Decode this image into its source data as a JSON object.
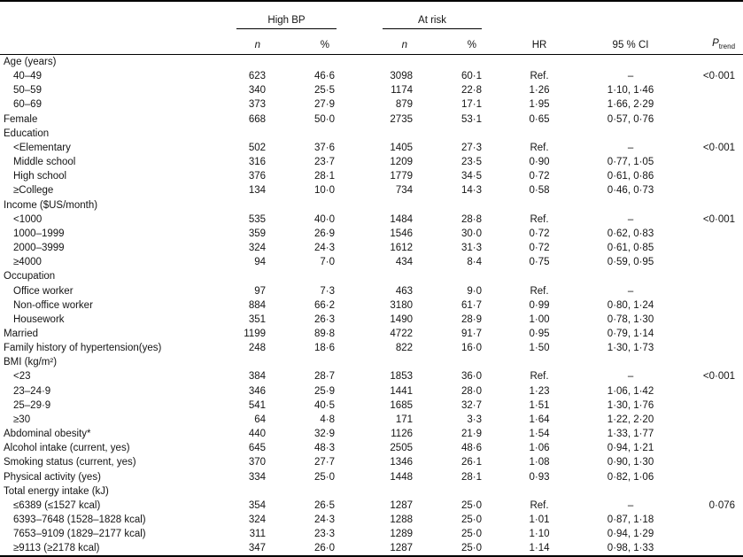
{
  "header": {
    "group_highbp": "High BP",
    "group_atrisk": "At risk",
    "col_n": "n",
    "col_pct": "%",
    "col_hr": "HR",
    "col_ci": "95 % CI",
    "col_p_main": "P",
    "col_p_sub": "trend"
  },
  "table": {
    "rows": [
      {
        "label": "Age (years)",
        "indent": 0,
        "hbp_n": "",
        "hbp_pct": "",
        "risk_n": "",
        "risk_pct": "",
        "hr": "",
        "ci": "",
        "p": ""
      },
      {
        "label": "40–49",
        "indent": 1,
        "hbp_n": "623",
        "hbp_pct": "46·6",
        "risk_n": "3098",
        "risk_pct": "60·1",
        "hr": "Ref.",
        "ci": "–",
        "p": "<0·001"
      },
      {
        "label": "50–59",
        "indent": 1,
        "hbp_n": "340",
        "hbp_pct": "25·5",
        "risk_n": "1174",
        "risk_pct": "22·8",
        "hr": "1·26",
        "ci": "1·10, 1·46",
        "p": ""
      },
      {
        "label": "60–69",
        "indent": 1,
        "hbp_n": "373",
        "hbp_pct": "27·9",
        "risk_n": "879",
        "risk_pct": "17·1",
        "hr": "1·95",
        "ci": "1·66, 2·29",
        "p": ""
      },
      {
        "label": "Female",
        "indent": 0,
        "hbp_n": "668",
        "hbp_pct": "50·0",
        "risk_n": "2735",
        "risk_pct": "53·1",
        "hr": "0·65",
        "ci": "0·57, 0·76",
        "p": ""
      },
      {
        "label": "Education",
        "indent": 0,
        "hbp_n": "",
        "hbp_pct": "",
        "risk_n": "",
        "risk_pct": "",
        "hr": "",
        "ci": "",
        "p": ""
      },
      {
        "label": "<Elementary",
        "indent": 1,
        "hbp_n": "502",
        "hbp_pct": "37·6",
        "risk_n": "1405",
        "risk_pct": "27·3",
        "hr": "Ref.",
        "ci": "–",
        "p": "<0·001"
      },
      {
        "label": "Middle school",
        "indent": 1,
        "hbp_n": "316",
        "hbp_pct": "23·7",
        "risk_n": "1209",
        "risk_pct": "23·5",
        "hr": "0·90",
        "ci": "0·77, 1·05",
        "p": ""
      },
      {
        "label": "High school",
        "indent": 1,
        "hbp_n": "376",
        "hbp_pct": "28·1",
        "risk_n": "1779",
        "risk_pct": "34·5",
        "hr": "0·72",
        "ci": "0·61, 0·86",
        "p": ""
      },
      {
        "label": "≥College",
        "indent": 1,
        "hbp_n": "134",
        "hbp_pct": "10·0",
        "risk_n": "734",
        "risk_pct": "14·3",
        "hr": "0·58",
        "ci": "0·46, 0·73",
        "p": ""
      },
      {
        "label": "Income ($US/month)",
        "indent": 0,
        "hbp_n": "",
        "hbp_pct": "",
        "risk_n": "",
        "risk_pct": "",
        "hr": "",
        "ci": "",
        "p": ""
      },
      {
        "label": "<1000",
        "indent": 1,
        "hbp_n": "535",
        "hbp_pct": "40·0",
        "risk_n": "1484",
        "risk_pct": "28·8",
        "hr": "Ref.",
        "ci": "–",
        "p": "<0·001"
      },
      {
        "label": "1000–1999",
        "indent": 1,
        "hbp_n": "359",
        "hbp_pct": "26·9",
        "risk_n": "1546",
        "risk_pct": "30·0",
        "hr": "0·72",
        "ci": "0·62, 0·83",
        "p": ""
      },
      {
        "label": "2000–3999",
        "indent": 1,
        "hbp_n": "324",
        "hbp_pct": "24·3",
        "risk_n": "1612",
        "risk_pct": "31·3",
        "hr": "0·72",
        "ci": "0·61, 0·85",
        "p": ""
      },
      {
        "label": "≥4000",
        "indent": 1,
        "hbp_n": "94",
        "hbp_pct": "7·0",
        "risk_n": "434",
        "risk_pct": "8·4",
        "hr": "0·75",
        "ci": "0·59, 0·95",
        "p": ""
      },
      {
        "label": "Occupation",
        "indent": 0,
        "hbp_n": "",
        "hbp_pct": "",
        "risk_n": "",
        "risk_pct": "",
        "hr": "",
        "ci": "",
        "p": ""
      },
      {
        "label": "Office worker",
        "indent": 1,
        "hbp_n": "97",
        "hbp_pct": "7·3",
        "risk_n": "463",
        "risk_pct": "9·0",
        "hr": "Ref.",
        "ci": "–",
        "p": ""
      },
      {
        "label": "Non-office worker",
        "indent": 1,
        "hbp_n": "884",
        "hbp_pct": "66·2",
        "risk_n": "3180",
        "risk_pct": "61·7",
        "hr": "0·99",
        "ci": "0·80, 1·24",
        "p": ""
      },
      {
        "label": "Housework",
        "indent": 1,
        "hbp_n": "351",
        "hbp_pct": "26·3",
        "risk_n": "1490",
        "risk_pct": "28·9",
        "hr": "1·00",
        "ci": "0·78, 1·30",
        "p": ""
      },
      {
        "label": "Married",
        "indent": 0,
        "hbp_n": "1199",
        "hbp_pct": "89·8",
        "risk_n": "4722",
        "risk_pct": "91·7",
        "hr": "0·95",
        "ci": "0·79, 1·14",
        "p": ""
      },
      {
        "label": "Family history of hypertension(yes)",
        "indent": 0,
        "hbp_n": "248",
        "hbp_pct": "18·6",
        "risk_n": "822",
        "risk_pct": "16·0",
        "hr": "1·50",
        "ci": "1·30, 1·73",
        "p": ""
      },
      {
        "label": "BMI (kg/m²)",
        "indent": 0,
        "hbp_n": "",
        "hbp_pct": "",
        "risk_n": "",
        "risk_pct": "",
        "hr": "",
        "ci": "",
        "p": ""
      },
      {
        "label": "<23",
        "indent": 1,
        "hbp_n": "384",
        "hbp_pct": "28·7",
        "risk_n": "1853",
        "risk_pct": "36·0",
        "hr": "Ref.",
        "ci": "–",
        "p": "<0·001"
      },
      {
        "label": "23–24·9",
        "indent": 1,
        "hbp_n": "346",
        "hbp_pct": "25·9",
        "risk_n": "1441",
        "risk_pct": "28·0",
        "hr": "1·23",
        "ci": "1·06, 1·42",
        "p": ""
      },
      {
        "label": "25–29·9",
        "indent": 1,
        "hbp_n": "541",
        "hbp_pct": "40·5",
        "risk_n": "1685",
        "risk_pct": "32·7",
        "hr": "1·51",
        "ci": "1·30, 1·76",
        "p": ""
      },
      {
        "label": "≥30",
        "indent": 1,
        "hbp_n": "64",
        "hbp_pct": "4·8",
        "risk_n": "171",
        "risk_pct": "3·3",
        "hr": "1·64",
        "ci": "1·22, 2·20",
        "p": ""
      },
      {
        "label": "Abdominal obesity*",
        "indent": 0,
        "hbp_n": "440",
        "hbp_pct": "32·9",
        "risk_n": "1126",
        "risk_pct": "21·9",
        "hr": "1·54",
        "ci": "1·33, 1·77",
        "p": ""
      },
      {
        "label": "Alcohol intake (current, yes)",
        "indent": 0,
        "hbp_n": "645",
        "hbp_pct": "48·3",
        "risk_n": "2505",
        "risk_pct": "48·6",
        "hr": "1·06",
        "ci": "0·94, 1·21",
        "p": ""
      },
      {
        "label": "Smoking status (current, yes)",
        "indent": 0,
        "hbp_n": "370",
        "hbp_pct": "27·7",
        "risk_n": "1346",
        "risk_pct": "26·1",
        "hr": "1·08",
        "ci": "0·90, 1·30",
        "p": ""
      },
      {
        "label": "Physical activity (yes)",
        "indent": 0,
        "hbp_n": "334",
        "hbp_pct": "25·0",
        "risk_n": "1448",
        "risk_pct": "28·1",
        "hr": "0·93",
        "ci": "0·82, 1·06",
        "p": ""
      },
      {
        "label": "Total energy intake (kJ)",
        "indent": 0,
        "hbp_n": "",
        "hbp_pct": "",
        "risk_n": "",
        "risk_pct": "",
        "hr": "",
        "ci": "",
        "p": ""
      },
      {
        "label": "≤6389 (≤1527 kcal)",
        "indent": 1,
        "hbp_n": "354",
        "hbp_pct": "26·5",
        "risk_n": "1287",
        "risk_pct": "25·0",
        "hr": "Ref.",
        "ci": "–",
        "p": "0·076"
      },
      {
        "label": "6393–7648 (1528–1828 kcal)",
        "indent": 1,
        "hbp_n": "324",
        "hbp_pct": "24·3",
        "risk_n": "1288",
        "risk_pct": "25·0",
        "hr": "1·01",
        "ci": "0·87, 1·18",
        "p": ""
      },
      {
        "label": "7653–9109 (1829–2177 kcal)",
        "indent": 1,
        "hbp_n": "311",
        "hbp_pct": "23·3",
        "risk_n": "1289",
        "risk_pct": "25·0",
        "hr": "1·10",
        "ci": "0·94, 1·29",
        "p": ""
      },
      {
        "label": "≥9113 (≥2178 kcal)",
        "indent": 1,
        "hbp_n": "347",
        "hbp_pct": "26·0",
        "risk_n": "1287",
        "risk_pct": "25·0",
        "hr": "1·14",
        "ci": "0·98, 1·33",
        "p": ""
      }
    ]
  }
}
